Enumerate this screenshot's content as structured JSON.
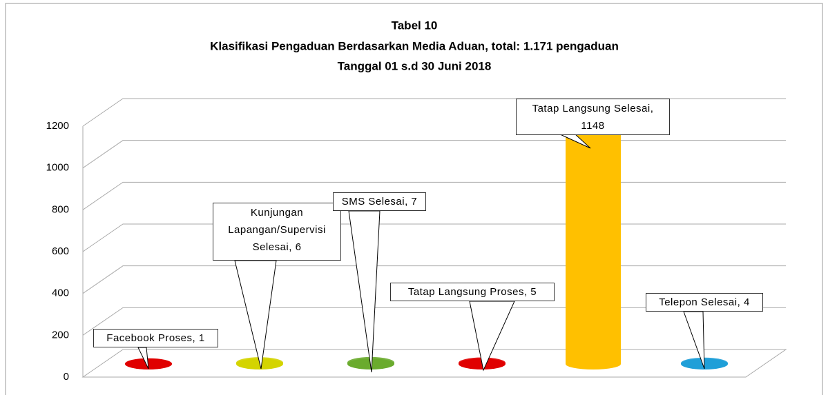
{
  "chart_data": {
    "type": "bar3d",
    "title": "Tabel 10",
    "subtitle": "Klasifikasi Pengaduan Berdasarkan Media Aduan, total: 1.171 pengaduan",
    "subtitle2": "Tanggal  01 s.d 30 Juni 2018",
    "values": [
      1,
      6,
      7,
      5,
      1148,
      4
    ],
    "value_labels": [
      "Facebook Proses, 1",
      "Kunjungan Lapangan/Supervisi Selesai, 6",
      "SMS Selesai, 7",
      "Tatap Langsung Proses, 5",
      "Tatap Langsung Selesai, 1148",
      "Telepon Selesai, 4"
    ],
    "colors": [
      "#e00000",
      "#d4d400",
      "#6aab2e",
      "#e00000",
      "#ffc000",
      "#1f9fd8"
    ],
    "ylim": [
      0,
      1200
    ],
    "yticks": [
      0,
      200,
      400,
      600,
      800,
      1000,
      1200
    ],
    "grid": true
  }
}
